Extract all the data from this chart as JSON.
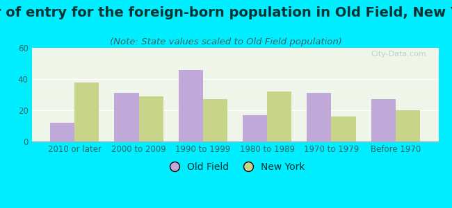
{
  "title": "Year of entry for the foreign-born population in Old Field, New York",
  "subtitle": "(Note: State values scaled to Old Field population)",
  "categories": [
    "2010 or later",
    "2000 to 2009",
    "1990 to 1999",
    "1980 to 1989",
    "1970 to 1979",
    "Before 1970"
  ],
  "old_field_values": [
    12,
    31,
    46,
    17,
    31,
    27
  ],
  "new_york_values": [
    38,
    29,
    27,
    32,
    16,
    20
  ],
  "old_field_color": "#c0a8d8",
  "new_york_color": "#c8d48a",
  "background_outer": "#00eeff",
  "background_inner_top": "#f0f5ea",
  "background_inner_bottom": "#d8ead0",
  "ylim": [
    0,
    60
  ],
  "yticks": [
    0,
    20,
    40,
    60
  ],
  "bar_width": 0.38,
  "title_fontsize": 14,
  "subtitle_fontsize": 9.5,
  "legend_fontsize": 10,
  "tick_fontsize": 8.5,
  "title_color": "#003333",
  "subtitle_color": "#336666",
  "tick_color": "#336666",
  "watermark": "City-Data.com"
}
